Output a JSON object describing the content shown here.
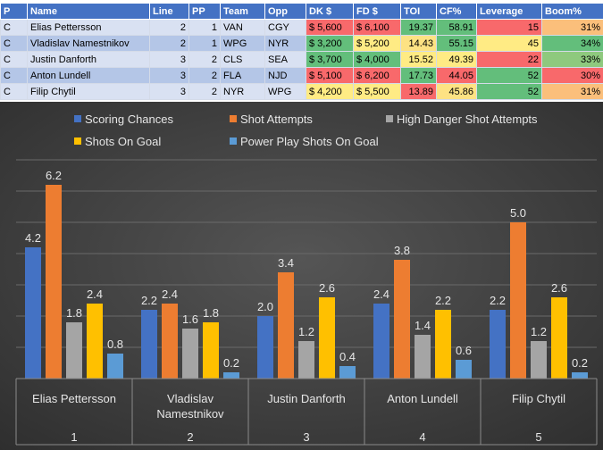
{
  "table": {
    "headers": [
      "P",
      "Name",
      "Line",
      "PP",
      "Team",
      "Opp",
      "DK $",
      "FD $",
      "TOI",
      "CF%",
      "Leverage",
      "Boom%"
    ],
    "rows": [
      [
        "C",
        "Elias Pettersson",
        "2",
        "1",
        "VAN",
        "CGY",
        "$ 5,600",
        "$ 6,100",
        "19.37",
        "58.91",
        "15",
        "31%"
      ],
      [
        "C",
        "Vladislav Namestnikov",
        "2",
        "1",
        "WPG",
        "NYR",
        "$ 3,200",
        "$ 5,200",
        "14.43",
        "55.15",
        "45",
        "34%"
      ],
      [
        "C",
        "Justin Danforth",
        "3",
        "2",
        "CLS",
        "SEA",
        "$ 3,700",
        "$ 4,000",
        "15.52",
        "49.39",
        "22",
        "33%"
      ],
      [
        "C",
        "Anton Lundell",
        "3",
        "2",
        "FLA",
        "NJD",
        "$ 5,100",
        "$ 6,200",
        "17.73",
        "44.05",
        "52",
        "30%"
      ],
      [
        "C",
        "Filip Chytil",
        "3",
        "2",
        "NYR",
        "WPG",
        "$ 4,200",
        "$ 5,500",
        "13.89",
        "45.86",
        "52",
        "31%"
      ]
    ],
    "cell_colors": [
      [
        null,
        null,
        null,
        null,
        null,
        null,
        "#f8696b",
        "#f8696b",
        "#63be7b",
        "#63be7b",
        "#f8696b",
        "#fbbf7b"
      ],
      [
        null,
        null,
        null,
        null,
        null,
        null,
        "#63be7b",
        "#ffeb84",
        "#fde283",
        "#63be7b",
        "#ffeb84",
        "#63be7b"
      ],
      [
        null,
        null,
        null,
        null,
        null,
        null,
        "#63be7b",
        "#63be7b",
        "#ffeb84",
        "#ffeb84",
        "#f8696b",
        "#8ec97e"
      ],
      [
        null,
        null,
        null,
        null,
        null,
        null,
        "#f8696b",
        "#f8696b",
        "#63be7b",
        "#f8696b",
        "#63be7b",
        "#f8696b"
      ],
      [
        null,
        null,
        null,
        null,
        null,
        null,
        "#ffeb84",
        "#ffeb84",
        "#f8696b",
        "#fde283",
        "#63be7b",
        "#fbbf7b"
      ]
    ]
  },
  "chart_data": {
    "type": "bar",
    "title": "",
    "xlabel": "",
    "ylabel": "",
    "ylim": [
      0,
      7
    ],
    "grid": true,
    "legend_position": "top",
    "categories": [
      {
        "name": "Elias Pettersson",
        "index": "1"
      },
      {
        "name": "Vladislav Namestnikov",
        "index": "2"
      },
      {
        "name": "Justin Danforth",
        "index": "3"
      },
      {
        "name": "Anton Lundell",
        "index": "4"
      },
      {
        "name": "Filip Chytil",
        "index": "5"
      }
    ],
    "series": [
      {
        "name": "Scoring Chances",
        "color": "#4472c4",
        "values": [
          4.2,
          2.2,
          2.0,
          2.4,
          2.2
        ]
      },
      {
        "name": "Shot Attempts",
        "color": "#ed7d31",
        "values": [
          6.2,
          2.4,
          3.4,
          3.8,
          5.0
        ]
      },
      {
        "name": "High Danger Shot Attempts",
        "color": "#a5a5a5",
        "values": [
          1.8,
          1.6,
          1.2,
          1.4,
          1.2
        ]
      },
      {
        "name": "Shots On Goal",
        "color": "#ffc000",
        "values": [
          2.4,
          1.8,
          2.6,
          2.2,
          2.6
        ]
      },
      {
        "name": "Power Play Shots On Goal",
        "color": "#5b9bd5",
        "values": [
          0.8,
          0.2,
          0.4,
          0.6,
          0.2
        ]
      }
    ]
  }
}
